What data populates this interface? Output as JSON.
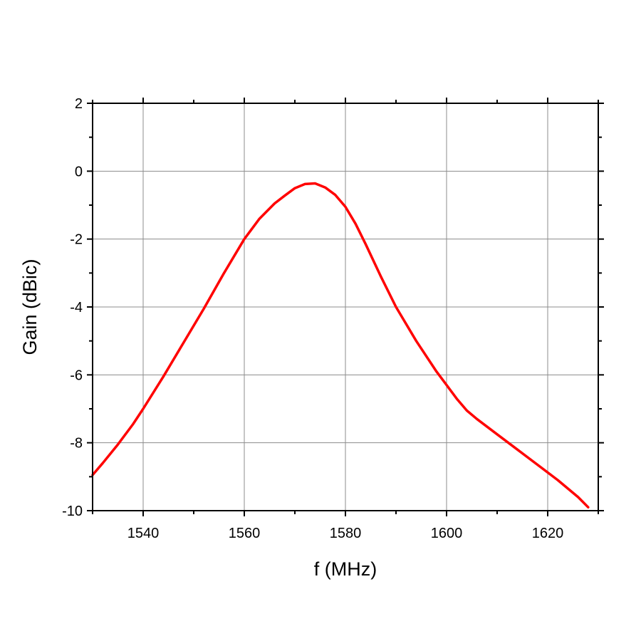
{
  "chart_data": {
    "type": "line",
    "title": "",
    "xlabel": "f (MHz)",
    "ylabel": "Gain (dBic)",
    "xlim": [
      1530,
      1630
    ],
    "ylim": [
      -10,
      2
    ],
    "x_ticks": [
      1540,
      1560,
      1580,
      1600,
      1620
    ],
    "x_tick_labels": [
      "1540",
      "1560",
      "1580",
      "1600",
      "1620"
    ],
    "y_ticks": [
      2,
      0,
      -2,
      -4,
      -6,
      -8,
      -10
    ],
    "y_tick_labels": [
      "2",
      "0",
      "-2",
      "-4",
      "-6",
      "-8",
      "-10"
    ],
    "grid": true,
    "legend": false,
    "series": [
      {
        "color": "#ff0000",
        "x": [
          1530,
          1532,
          1535,
          1538,
          1540,
          1544,
          1548,
          1552,
          1556,
          1560,
          1563,
          1566,
          1568,
          1570,
          1572,
          1574,
          1576,
          1578,
          1580,
          1582,
          1584,
          1587,
          1590,
          1594,
          1598,
          1600,
          1602,
          1604,
          1606,
          1610,
          1614,
          1618,
          1622,
          1626,
          1628
        ],
        "y": [
          -8.95,
          -8.6,
          -8.05,
          -7.45,
          -7.0,
          -6.05,
          -5.05,
          -4.05,
          -3.0,
          -2.0,
          -1.4,
          -0.95,
          -0.72,
          -0.5,
          -0.38,
          -0.36,
          -0.48,
          -0.7,
          -1.05,
          -1.55,
          -2.15,
          -3.1,
          -4.0,
          -5.0,
          -5.9,
          -6.3,
          -6.7,
          -7.05,
          -7.3,
          -7.75,
          -8.2,
          -8.65,
          -9.1,
          -9.6,
          -9.9
        ]
      }
    ]
  }
}
